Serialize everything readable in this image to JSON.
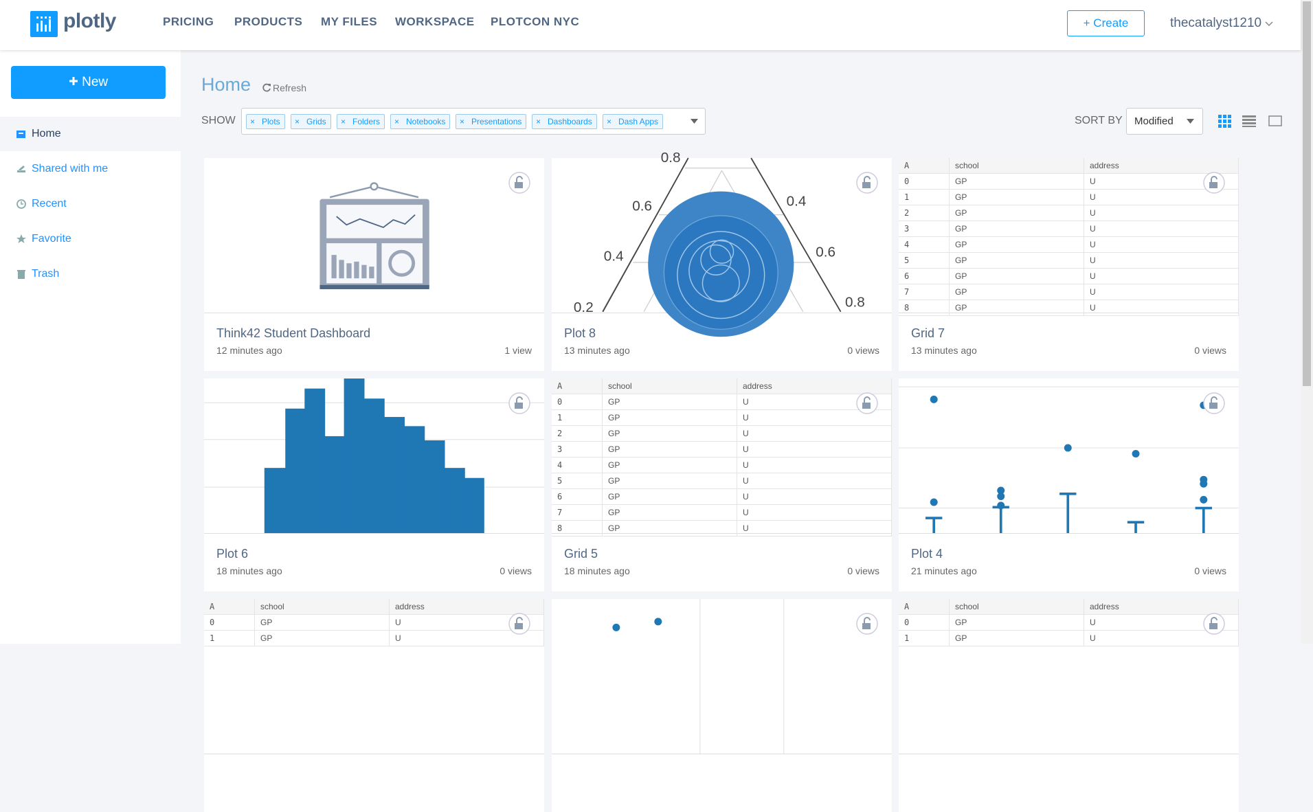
{
  "nav": {
    "logo": "plotly",
    "links": [
      "PRICING",
      "PRODUCTS",
      "MY FILES",
      "WORKSPACE",
      "PLOTCON NYC"
    ],
    "create": "+ Create",
    "user": "thecatalyst1210"
  },
  "sidebar": {
    "new": "New",
    "items": [
      "Home",
      "Shared with me",
      "Recent",
      "Favorite",
      "Trash"
    ]
  },
  "main": {
    "title": "Home",
    "refresh": "Refresh",
    "show_label": "SHOW",
    "filters": [
      "Plots",
      "Grids",
      "Folders",
      "Notebooks",
      "Presentations",
      "Dashboards",
      "Dash Apps"
    ],
    "sort_label": "SORT BY",
    "sort_value": "Modified"
  },
  "cards": [
    {
      "thumb": "dashboard",
      "title": "Think42 Student Dashboard",
      "time": "12 minutes ago",
      "views": "1 view"
    },
    {
      "thumb": "ternary",
      "labels": [
        "0.8",
        "0.6",
        "0.4",
        "0.2",
        "0.4",
        "0.6",
        "0.8"
      ],
      "title": "Plot 8",
      "time": "13 minutes ago",
      "views": "0 views"
    },
    {
      "thumb": "grid",
      "table": {
        "header": [
          "A",
          "school",
          "address"
        ],
        "rows": [
          [
            "0",
            "GP",
            "U"
          ],
          [
            "1",
            "GP",
            "U"
          ],
          [
            "2",
            "GP",
            "U"
          ],
          [
            "3",
            "GP",
            "U"
          ],
          [
            "4",
            "GP",
            "U"
          ],
          [
            "5",
            "GP",
            "U"
          ],
          [
            "6",
            "GP",
            "U"
          ],
          [
            "7",
            "GP",
            "U"
          ],
          [
            "8",
            "GP",
            "U"
          ]
        ]
      },
      "title": "Grid 7",
      "time": "13 minutes ago",
      "views": "0 views"
    },
    {
      "thumb": "bars",
      "title": "Plot 6",
      "time": "18 minutes ago",
      "views": "0 views"
    },
    {
      "thumb": "grid",
      "table": {
        "header": [
          "A",
          "school",
          "address"
        ],
        "rows": [
          [
            "0",
            "GP",
            "U"
          ],
          [
            "1",
            "GP",
            "U"
          ],
          [
            "2",
            "GP",
            "U"
          ],
          [
            "3",
            "GP",
            "U"
          ],
          [
            "4",
            "GP",
            "U"
          ],
          [
            "5",
            "GP",
            "U"
          ],
          [
            "6",
            "GP",
            "U"
          ],
          [
            "7",
            "GP",
            "U"
          ],
          [
            "8",
            "GP",
            "U"
          ]
        ]
      },
      "title": "Grid 5",
      "time": "18 minutes ago",
      "views": "0 views"
    },
    {
      "thumb": "scatter",
      "title": "Plot 4",
      "time": "21 minutes ago",
      "views": "0 views"
    },
    {
      "thumb": "grid",
      "table": {
        "header": [
          "A",
          "school",
          "address"
        ],
        "rows": [
          [
            "0",
            "GP",
            "U"
          ],
          [
            "1",
            "GP",
            "U"
          ]
        ]
      }
    },
    {
      "thumb": "dots"
    },
    {
      "thumb": "grid",
      "table": {
        "header": [
          "A",
          "school",
          "address"
        ],
        "rows": [
          [
            "0",
            "GP",
            "U"
          ],
          [
            "1",
            "GP",
            "U"
          ]
        ]
      }
    }
  ]
}
